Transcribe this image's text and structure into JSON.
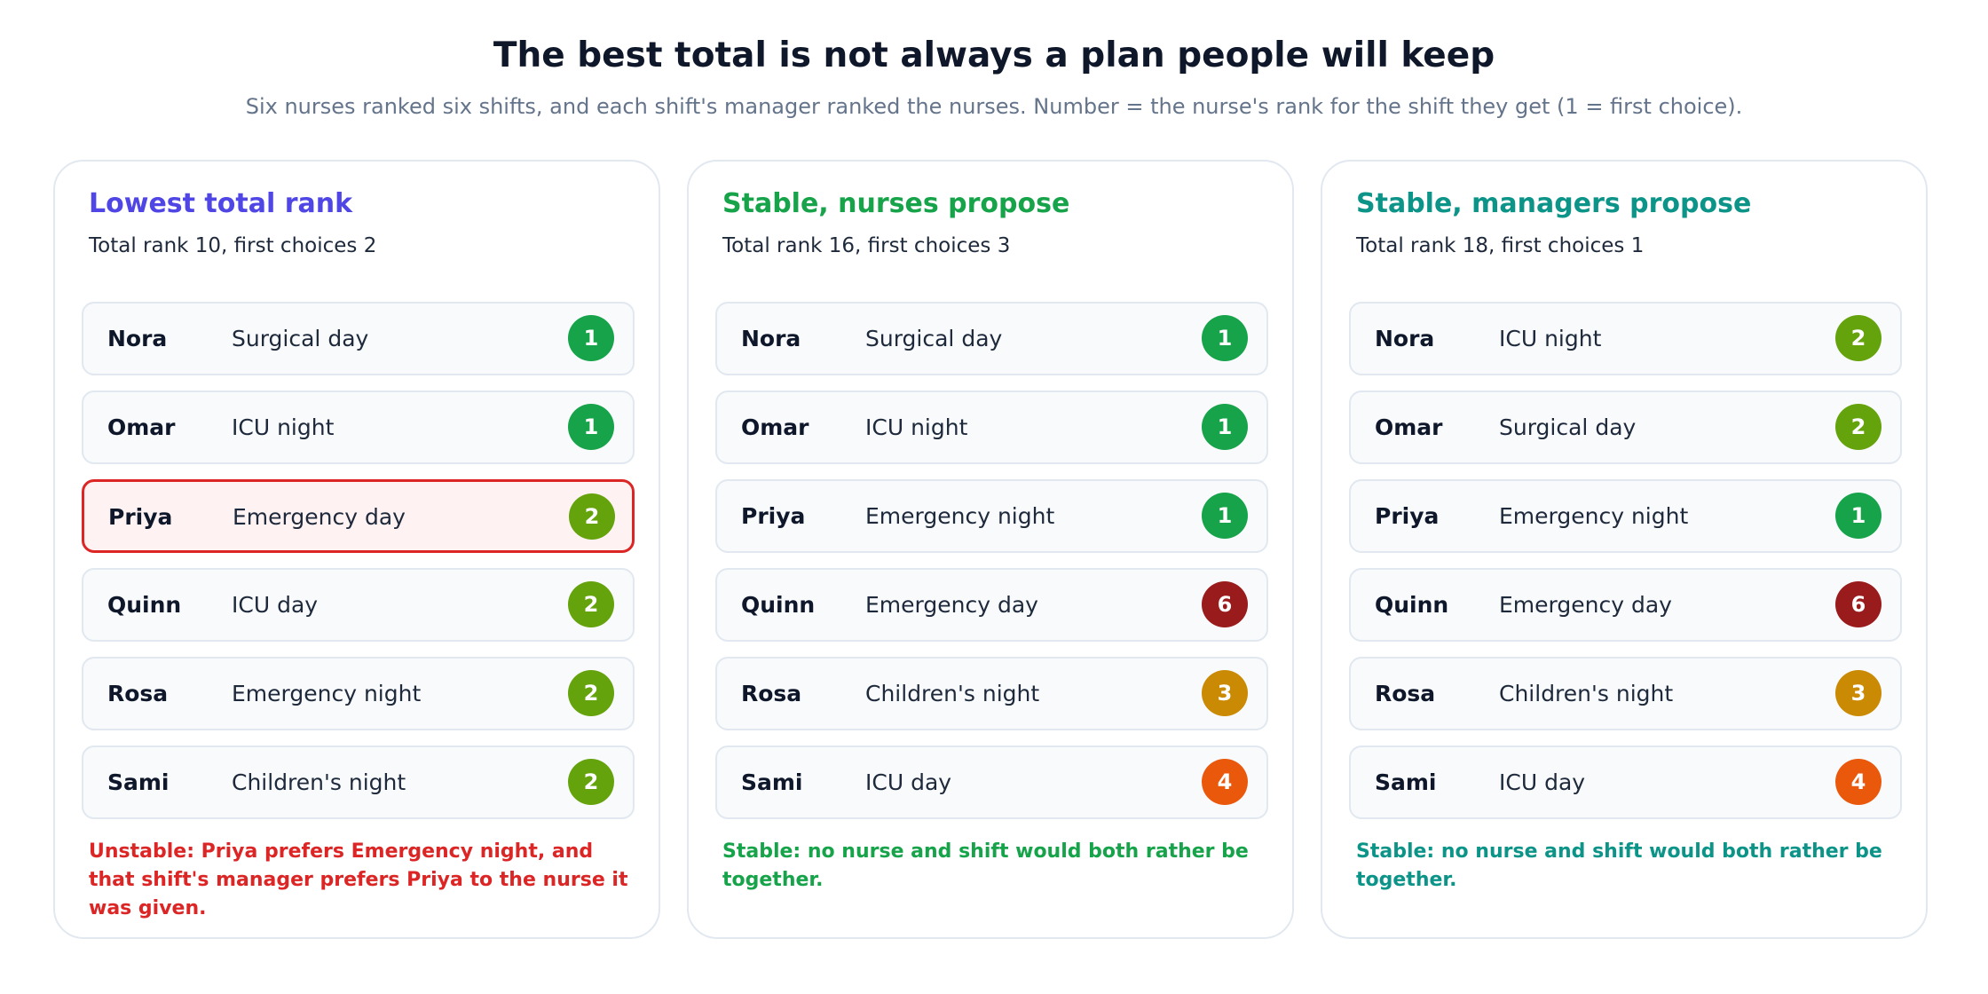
{
  "header": {
    "title": "The best total is not always a plan people will keep",
    "subtitle": "Six nurses ranked six shifts, and each shift's manager ranked the nurses. Number = the nurse's rank for the shift they get (1 = first choice)."
  },
  "rank_colors": {
    "1": "#16a34a",
    "2": "#65a30d",
    "3": "#ca8a04",
    "4": "#ea580c",
    "6": "#991b1b"
  },
  "panels": [
    {
      "title": "Lowest total rank",
      "color": "#4f46e5",
      "summary": "Total rank 10, first choices 2",
      "rows": [
        {
          "name": "Nora",
          "shift": "Surgical day",
          "rank": 1
        },
        {
          "name": "Omar",
          "shift": "ICU night",
          "rank": 1
        },
        {
          "name": "Priya",
          "shift": "Emergency day",
          "rank": 2,
          "highlight": true
        },
        {
          "name": "Quinn",
          "shift": "ICU day",
          "rank": 2
        },
        {
          "name": "Rosa",
          "shift": "Emergency night",
          "rank": 2
        },
        {
          "name": "Sami",
          "shift": "Children's night",
          "rank": 2
        }
      ],
      "note": "Unstable: Priya prefers Emergency night, and that shift's manager prefers Priya to the nurse it was given.",
      "note_color": "#dc2626"
    },
    {
      "title": "Stable, nurses propose",
      "color": "#16a34a",
      "summary": "Total rank 16, first choices 3",
      "rows": [
        {
          "name": "Nora",
          "shift": "Surgical day",
          "rank": 1
        },
        {
          "name": "Omar",
          "shift": "ICU night",
          "rank": 1
        },
        {
          "name": "Priya",
          "shift": "Emergency night",
          "rank": 1
        },
        {
          "name": "Quinn",
          "shift": "Emergency day",
          "rank": 6
        },
        {
          "name": "Rosa",
          "shift": "Children's night",
          "rank": 3
        },
        {
          "name": "Sami",
          "shift": "ICU day",
          "rank": 4
        }
      ],
      "note": "Stable: no nurse and shift would both rather be together.",
      "note_color": "#16a34a"
    },
    {
      "title": "Stable, managers propose",
      "color": "#0d9488",
      "summary": "Total rank 18, first choices 1",
      "rows": [
        {
          "name": "Nora",
          "shift": "ICU night",
          "rank": 2
        },
        {
          "name": "Omar",
          "shift": "Surgical day",
          "rank": 2
        },
        {
          "name": "Priya",
          "shift": "Emergency night",
          "rank": 1
        },
        {
          "name": "Quinn",
          "shift": "Emergency day",
          "rank": 6
        },
        {
          "name": "Rosa",
          "shift": "Children's night",
          "rank": 3
        },
        {
          "name": "Sami",
          "shift": "ICU day",
          "rank": 4
        }
      ],
      "note": "Stable: no nurse and shift would both rather be together.",
      "note_color": "#0d9488"
    }
  ]
}
